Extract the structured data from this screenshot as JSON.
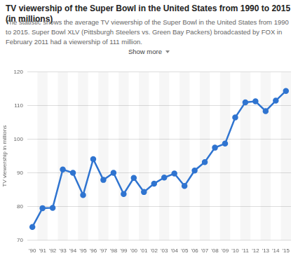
{
  "chart_data": {
    "type": "line",
    "title": "TV viewership of the Super Bowl in the United States from 1990 to 2015 (in millions)",
    "subtitle": "The statistic shows the average TV viewership of the Super Bowl in the United States from 1990 to 2015. Super Bowl XLV (Pittsburgh Steelers vs. Green Bay Packers) broadcasted by FOX in February 2011 had a viewership of 111 million.",
    "button": "Show more",
    "y_label": "TV viewership in millions",
    "categories": [
      "'90",
      "'91",
      "'92",
      "'93",
      "'94",
      "'95",
      "'96",
      "'97",
      "'98",
      "'99",
      "'00",
      "'01",
      "'02",
      "'03",
      "'04",
      "'05",
      "'06",
      "'07",
      "'08",
      "'09",
      "'10",
      "'11",
      "'12",
      "'13",
      "'14",
      "'15"
    ],
    "values": [
      73.9,
      79.5,
      79.6,
      91.0,
      90.0,
      83.4,
      94.1,
      87.9,
      90.0,
      83.7,
      88.5,
      84.3,
      86.8,
      88.6,
      89.8,
      86.1,
      90.7,
      93.2,
      97.5,
      98.7,
      106.5,
      111.0,
      111.3,
      108.4,
      111.5,
      114.4
    ],
    "color": "#2f74d0",
    "marker": "circle",
    "ylim": [
      70,
      120
    ],
    "yticks": [
      70,
      80,
      90,
      100,
      110,
      120
    ],
    "grid": true
  }
}
